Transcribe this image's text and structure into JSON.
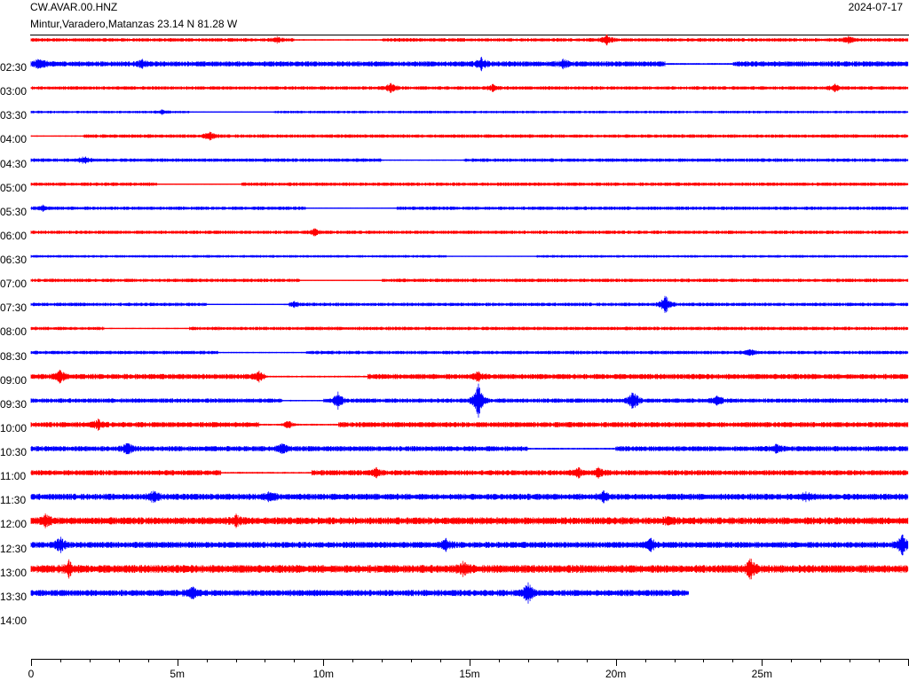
{
  "header": {
    "station": "CW.AVAR.00.HNZ",
    "location": "Mintur,Varadero,Matanzas  23.14 N 81.28 W",
    "date": "2024-07-17"
  },
  "chart_data": {
    "type": "line",
    "title": "CW.AVAR.00.HNZ",
    "subtitle": "Mintur,Varadero,Matanzas  23.14 N 81.28 W",
    "date": "2024-07-17",
    "row_labels": [
      "",
      "02:30",
      "03:00",
      "03:30",
      "04:00",
      "04:30",
      "05:00",
      "05:30",
      "06:00",
      "06:30",
      "07:00",
      "07:30",
      "08:00",
      "08:30",
      "09:00",
      "09:30",
      "10:00",
      "10:30",
      "11:00",
      "11:30",
      "12:00",
      "12:30",
      "13:00",
      "13:30",
      "14:00"
    ],
    "x_ticks": [
      "0",
      "5m",
      "10m",
      "15m",
      "20m",
      "25m"
    ],
    "x_tick_values": [
      0,
      5,
      10,
      15,
      20,
      25
    ],
    "xlim": [
      0,
      30
    ],
    "row_colors": [
      "#ff0000",
      "#0000ff"
    ],
    "rows": [
      {
        "label": "",
        "end": 30,
        "noise": 2,
        "events": [
          [
            8.4,
            3
          ],
          [
            19.7,
            5
          ],
          [
            28,
            4
          ]
        ],
        "gaps": [
          [
            9,
            12
          ]
        ]
      },
      {
        "label": "02:30",
        "end": 30,
        "noise": 3,
        "events": [
          [
            0.3,
            6
          ],
          [
            3.8,
            3
          ],
          [
            15.4,
            6
          ],
          [
            18.2,
            4
          ]
        ],
        "gaps": [
          [
            21.7,
            24
          ]
        ]
      },
      {
        "label": "03:00",
        "end": 30,
        "noise": 2,
        "events": [
          [
            12.3,
            5
          ],
          [
            15.8,
            3
          ],
          [
            27.5,
            4
          ]
        ],
        "gaps": []
      },
      {
        "label": "03:30",
        "end": 30,
        "noise": 1.5,
        "events": [
          [
            4.5,
            2
          ]
        ],
        "gaps": [
          [
            5.4,
            8.3
          ]
        ]
      },
      {
        "label": "04:00",
        "end": 30,
        "noise": 2,
        "events": [
          [
            6.1,
            5
          ]
        ],
        "gaps": [
          [
            0,
            1.8
          ]
        ]
      },
      {
        "label": "04:30",
        "end": 30,
        "noise": 2,
        "events": [
          [
            1.8,
            4
          ]
        ],
        "gaps": [
          [
            12,
            14.8
          ]
        ]
      },
      {
        "label": "05:00",
        "end": 30,
        "noise": 2,
        "events": [],
        "gaps": [
          [
            4.3,
            7.2
          ]
        ]
      },
      {
        "label": "05:30",
        "end": 30,
        "noise": 2,
        "events": [
          [
            0.4,
            3
          ]
        ],
        "gaps": [
          [
            9.4,
            12.5
          ]
        ]
      },
      {
        "label": "06:00",
        "end": 30,
        "noise": 2,
        "events": [
          [
            9.7,
            3
          ]
        ],
        "gaps": []
      },
      {
        "label": "06:30",
        "end": 30,
        "noise": 1.5,
        "events": [],
        "gaps": [
          [
            14.2,
            17.3
          ]
        ]
      },
      {
        "label": "07:00",
        "end": 30,
        "noise": 2,
        "events": [],
        "gaps": [
          [
            9.2,
            12
          ]
        ]
      },
      {
        "label": "07:30",
        "end": 30,
        "noise": 2,
        "events": [
          [
            21.7,
            11
          ],
          [
            9,
            3
          ]
        ],
        "gaps": [
          [
            6,
            8.8
          ]
        ]
      },
      {
        "label": "08:00",
        "end": 30,
        "noise": 2,
        "events": [],
        "gaps": [
          [
            2.5,
            5.4
          ]
        ]
      },
      {
        "label": "08:30",
        "end": 30,
        "noise": 2,
        "events": [
          [
            24.6,
            3
          ]
        ],
        "gaps": [
          [
            6.4,
            9.4
          ]
        ]
      },
      {
        "label": "09:00",
        "end": 30,
        "noise": 3,
        "events": [
          [
            1,
            6
          ],
          [
            7.8,
            4
          ],
          [
            15.3,
            5
          ]
        ],
        "gaps": [
          [
            8,
            11.5
          ]
        ]
      },
      {
        "label": "09:30",
        "end": 30,
        "noise": 2.5,
        "events": [
          [
            15.3,
            20
          ],
          [
            10.5,
            8
          ],
          [
            20.6,
            12
          ],
          [
            23.5,
            5
          ]
        ],
        "gaps": [
          [
            8.6,
            10
          ]
        ]
      },
      {
        "label": "10:00",
        "end": 30,
        "noise": 3,
        "events": [
          [
            2.3,
            4
          ],
          [
            8.8,
            5
          ]
        ],
        "gaps": [
          [
            7.8,
            10.5
          ]
        ]
      },
      {
        "label": "10:30",
        "end": 30,
        "noise": 3,
        "events": [
          [
            3.3,
            6
          ],
          [
            8.6,
            4
          ],
          [
            25.5,
            4
          ]
        ],
        "gaps": [
          [
            17,
            20
          ]
        ]
      },
      {
        "label": "11:00",
        "end": 30,
        "noise": 3,
        "events": [
          [
            11.8,
            4
          ],
          [
            18.7,
            5
          ],
          [
            19.4,
            5
          ]
        ],
        "gaps": [
          [
            6.5,
            9.6
          ]
        ]
      },
      {
        "label": "11:30",
        "end": 30,
        "noise": 3.5,
        "events": [
          [
            4.2,
            6
          ],
          [
            8.2,
            6
          ],
          [
            19.6,
            5
          ],
          [
            26.5,
            4
          ]
        ],
        "gaps": []
      },
      {
        "label": "12:00",
        "end": 30,
        "noise": 4,
        "events": [
          [
            0.5,
            6
          ],
          [
            7,
            5
          ],
          [
            21.8,
            4
          ]
        ],
        "gaps": []
      },
      {
        "label": "12:30",
        "end": 30,
        "noise": 3.5,
        "events": [
          [
            1,
            7
          ],
          [
            14.2,
            5
          ],
          [
            21.2,
            6
          ],
          [
            29.8,
            10
          ]
        ],
        "gaps": []
      },
      {
        "label": "13:00",
        "end": 30,
        "noise": 4.5,
        "events": [
          [
            1.3,
            7
          ],
          [
            14.8,
            6
          ],
          [
            24.6,
            10
          ]
        ],
        "gaps": []
      },
      {
        "label": "13:30",
        "end": 22.5,
        "noise": 3.5,
        "events": [
          [
            5.5,
            6
          ],
          [
            17,
            11
          ]
        ],
        "gaps": []
      },
      {
        "label": "14:00",
        "end": 0,
        "noise": 0,
        "events": [],
        "gaps": []
      }
    ]
  }
}
